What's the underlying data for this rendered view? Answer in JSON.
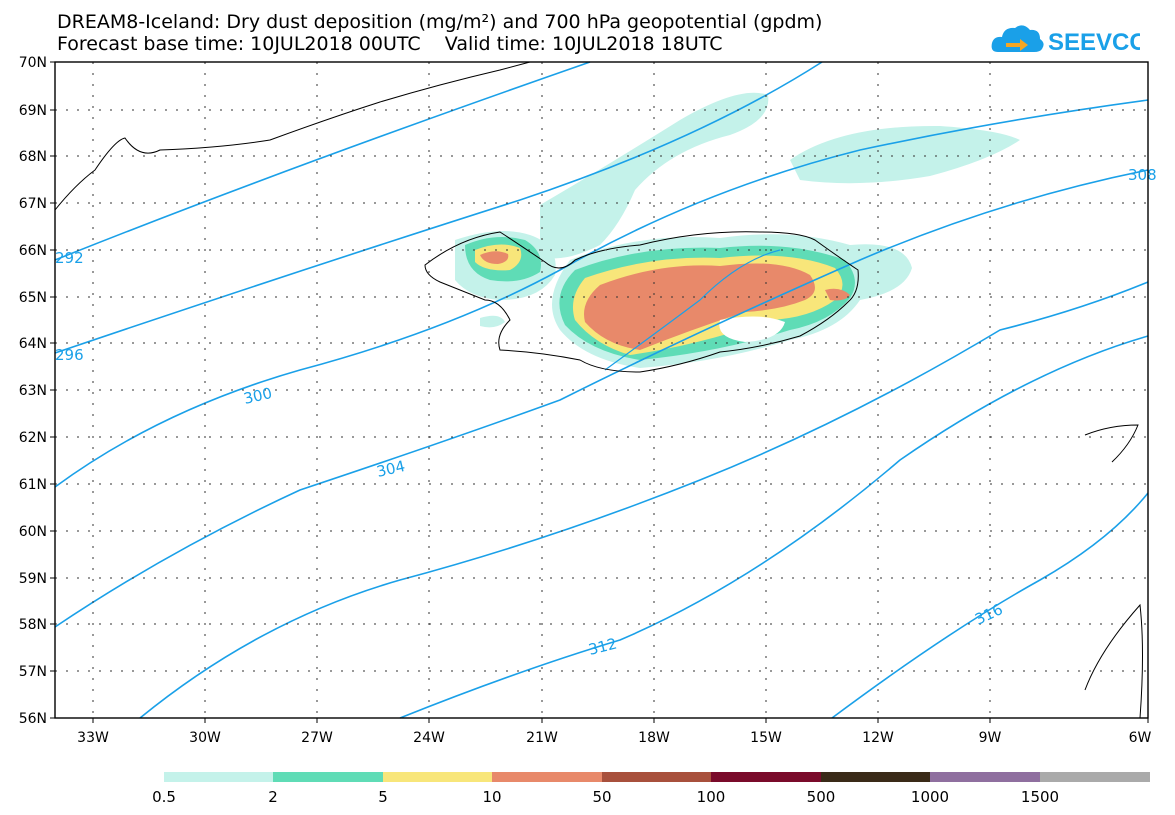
{
  "title_line1": "DREAM8-Iceland: Dry dust deposition (mg/m²) and 700 hPa geopotential (gpdm)",
  "title_line2": "Forecast base time: 10JUL2018 00UTC    Valid time: 10JUL2018 18UTC",
  "logo_text": "SEEVCCC",
  "map": {
    "y_ticks": [
      "70N",
      "69N",
      "68N",
      "67N",
      "66N",
      "65N",
      "64N",
      "63N",
      "62N",
      "61N",
      "60N",
      "59N",
      "58N",
      "57N",
      "56N"
    ],
    "x_ticks": [
      "33W",
      "30W",
      "27W",
      "24W",
      "21W",
      "18W",
      "15W",
      "12W",
      "9W",
      "6W"
    ],
    "contour_labels": [
      "292",
      "296",
      "300",
      "304",
      "308",
      "312",
      "316"
    ],
    "contour_color": "#1aa0e8",
    "coast_color": "#000000"
  },
  "legend": {
    "labels": [
      "0.5",
      "2",
      "5",
      "10",
      "50",
      "100",
      "500",
      "1000",
      "1500"
    ],
    "colors": [
      "#c4f2ea",
      "#5fdcb6",
      "#f8e67a",
      "#e8896a",
      "#a8503c",
      "#7a0a2a",
      "#3a2a18",
      "#8f6f9f",
      "#aaaaaa"
    ]
  }
}
